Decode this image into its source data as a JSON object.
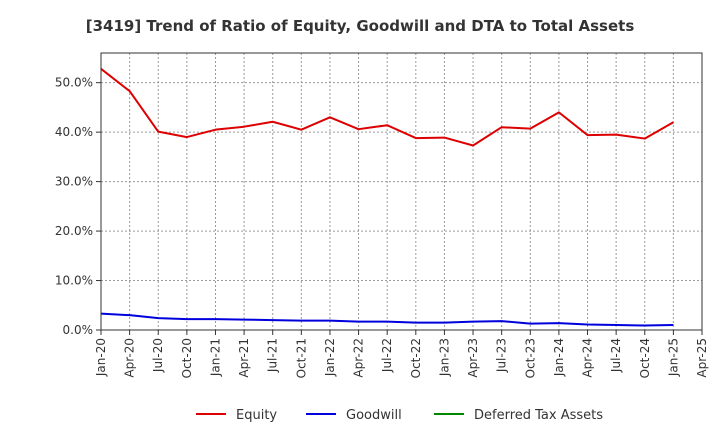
{
  "chart_data": {
    "type": "line",
    "title": "[3419]  Trend of Ratio of Equity, Goodwill and DTA to Total Assets",
    "xlabel": "",
    "ylabel": "",
    "ylim": [
      0,
      56
    ],
    "y_ticks": [
      0,
      10,
      20,
      30,
      40,
      50
    ],
    "y_tick_labels": [
      "0.0%",
      "10.0%",
      "20.0%",
      "30.0%",
      "40.0%",
      "50.0%"
    ],
    "x": [
      "Jan-20",
      "Apr-20",
      "Jul-20",
      "Oct-20",
      "Jan-21",
      "Apr-21",
      "Jul-21",
      "Oct-21",
      "Jan-22",
      "Apr-22",
      "Jul-22",
      "Oct-22",
      "Jan-23",
      "Apr-23",
      "Jul-23",
      "Oct-23",
      "Jan-24",
      "Apr-24",
      "Jul-24",
      "Oct-24",
      "Jan-25",
      "Apr-25"
    ],
    "grid": true,
    "legend_position": "bottom",
    "series": [
      {
        "name": "Equity",
        "color": "#dd0000",
        "values": [
          52.8,
          48.3,
          40.1,
          39.0,
          40.5,
          41.1,
          42.1,
          40.5,
          43.0,
          40.6,
          41.4,
          38.8,
          38.9,
          37.3,
          41.0,
          40.7,
          44.0,
          39.4,
          39.5,
          38.7,
          42.0,
          null
        ]
      },
      {
        "name": "Goodwill",
        "color": "#0000dd",
        "values": [
          3.3,
          3.0,
          2.4,
          2.2,
          2.2,
          2.1,
          2.0,
          1.9,
          1.9,
          1.7,
          1.7,
          1.5,
          1.5,
          1.7,
          1.8,
          1.3,
          1.4,
          1.1,
          1.0,
          0.9,
          1.0,
          null
        ]
      },
      {
        "name": "Deferred Tax Assets",
        "color": "#008800",
        "values": [
          null,
          null,
          null,
          null,
          null,
          null,
          null,
          null,
          null,
          null,
          null,
          null,
          null,
          null,
          null,
          null,
          null,
          null,
          null,
          null,
          null,
          null
        ]
      }
    ]
  }
}
